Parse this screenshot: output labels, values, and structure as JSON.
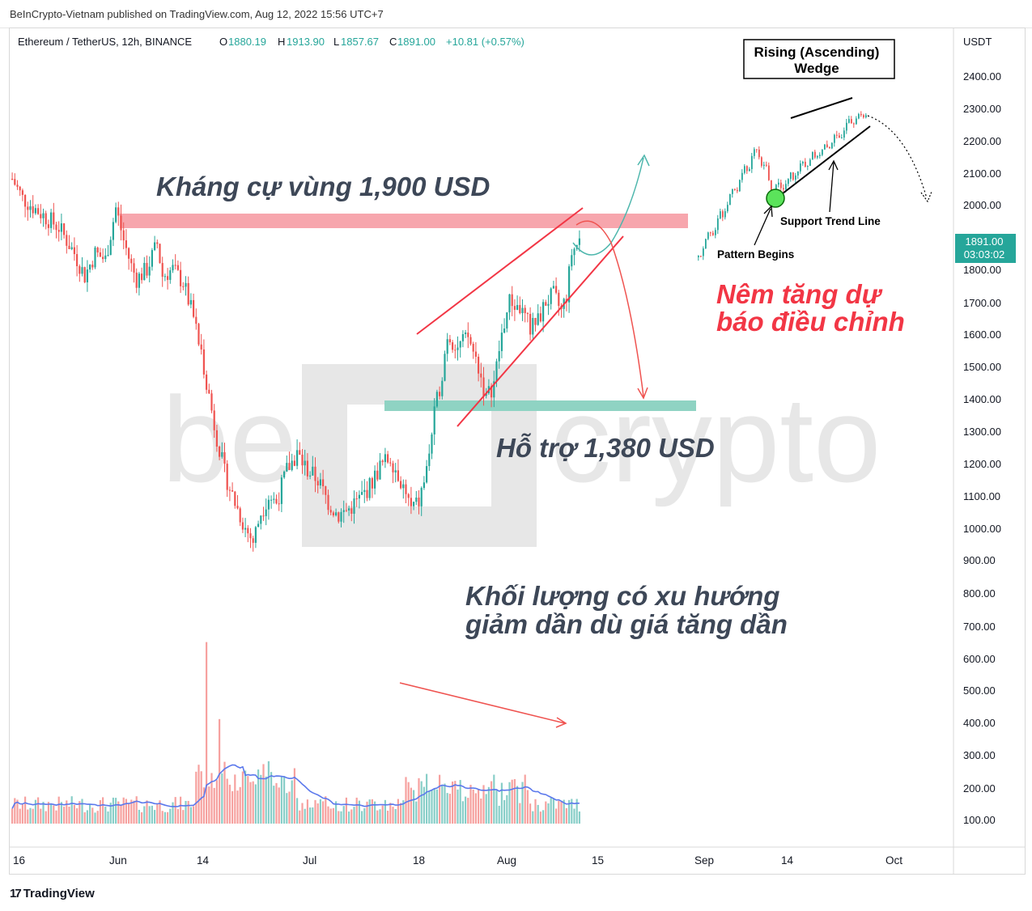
{
  "header": {
    "published": "BeInCrypto-Vietnam published on TradingView.com, Aug 12, 2022 15:56 UTC+7"
  },
  "legend": {
    "symbol": "Ethereum / TetherUS, 12h, BINANCE",
    "o_label": "O",
    "o": "1880.19",
    "h_label": "H",
    "h": "1913.90",
    "l_label": "L",
    "l": "1857.67",
    "c_label": "C",
    "c": "1891.00",
    "change": "+10.81 (+0.57%)"
  },
  "price_tag": {
    "price": "1891.00",
    "countdown": "03:03:02"
  },
  "annotations": {
    "resistance": "Kháng cự vùng 1,900 USD",
    "support": "Hỗ trợ 1,380 USD",
    "forecast_line1": "Nêm tăng dự",
    "forecast_line2": "báo điều chỉnh",
    "volume_line1": "Khối lượng có xu hướng",
    "volume_line2": "giảm dần dù giá tăng dần"
  },
  "inset": {
    "title_line1": "Rising (Ascending)",
    "title_line2": "Wedge",
    "support_label": "Support Trend Line",
    "begin_label": "Pattern Begins"
  },
  "watermark": {
    "left": "be",
    "right": "crypto"
  },
  "footer": {
    "brand": "TradingView",
    "mark": "17"
  },
  "colors": {
    "up": "#26a69a",
    "down": "#ef5350",
    "wedge": "#f23645",
    "resistance_zone": "#f7a6ad",
    "support_zone": "#8fd3c3",
    "ma": "#5b78ec"
  },
  "chart_data": {
    "type": "candlestick",
    "y_unit": "USDT",
    "y_ticks": [
      "2400.00",
      "2300.00",
      "2200.00",
      "2100.00",
      "2000.00",
      "1800.00",
      "1700.00",
      "1600.00",
      "1500.00",
      "1400.00",
      "1300.00",
      "1200.00",
      "1100.00",
      "1000.00",
      "900.00",
      "800.00",
      "700.00",
      "600.00",
      "500.00",
      "400.00",
      "300.00",
      "200.00",
      "100.00"
    ],
    "x_ticks": [
      "16",
      "Jun",
      "14",
      "Jul",
      "18",
      "Aug",
      "15",
      "Sep",
      "14",
      "Oct"
    ],
    "resistance_zone": [
      1900,
      1940
    ],
    "support_zone": [
      1360,
      1400
    ],
    "price_path": [
      {
        "t": 0,
        "p": 2080
      },
      {
        "t": 4,
        "p": 2020
      },
      {
        "t": 10,
        "p": 1980
      },
      {
        "t": 18,
        "p": 1930
      },
      {
        "t": 24,
        "p": 1850
      },
      {
        "t": 28,
        "p": 1780
      },
      {
        "t": 32,
        "p": 1850
      },
      {
        "t": 36,
        "p": 1830
      },
      {
        "t": 40,
        "p": 1990
      },
      {
        "t": 43,
        "p": 1890
      },
      {
        "t": 46,
        "p": 1810
      },
      {
        "t": 48,
        "p": 1770
      },
      {
        "t": 52,
        "p": 1800
      },
      {
        "t": 56,
        "p": 1880
      },
      {
        "t": 58,
        "p": 1780
      },
      {
        "t": 62,
        "p": 1800
      },
      {
        "t": 66,
        "p": 1760
      },
      {
        "t": 70,
        "p": 1650
      },
      {
        "t": 74,
        "p": 1500
      },
      {
        "t": 78,
        "p": 1320
      },
      {
        "t": 82,
        "p": 1170
      },
      {
        "t": 86,
        "p": 1080
      },
      {
        "t": 90,
        "p": 1000
      },
      {
        "t": 93,
        "p": 960
      },
      {
        "t": 96,
        "p": 1050
      },
      {
        "t": 99,
        "p": 1100
      },
      {
        "t": 102,
        "p": 1080
      },
      {
        "t": 106,
        "p": 1180
      },
      {
        "t": 110,
        "p": 1230
      },
      {
        "t": 114,
        "p": 1180
      },
      {
        "t": 118,
        "p": 1150
      },
      {
        "t": 122,
        "p": 1080
      },
      {
        "t": 126,
        "p": 1040
      },
      {
        "t": 130,
        "p": 1060
      },
      {
        "t": 134,
        "p": 1090
      },
      {
        "t": 138,
        "p": 1130
      },
      {
        "t": 142,
        "p": 1190
      },
      {
        "t": 146,
        "p": 1220
      },
      {
        "t": 150,
        "p": 1150
      },
      {
        "t": 154,
        "p": 1060
      },
      {
        "t": 157,
        "p": 1080
      },
      {
        "t": 160,
        "p": 1180
      },
      {
        "t": 163,
        "p": 1350
      },
      {
        "t": 166,
        "p": 1480
      },
      {
        "t": 168,
        "p": 1600
      },
      {
        "t": 172,
        "p": 1560
      },
      {
        "t": 176,
        "p": 1590
      },
      {
        "t": 180,
        "p": 1500
      },
      {
        "t": 183,
        "p": 1400
      },
      {
        "t": 186,
        "p": 1450
      },
      {
        "t": 189,
        "p": 1600
      },
      {
        "t": 192,
        "p": 1700
      },
      {
        "t": 196,
        "p": 1680
      },
      {
        "t": 200,
        "p": 1620
      },
      {
        "t": 203,
        "p": 1640
      },
      {
        "t": 206,
        "p": 1700
      },
      {
        "t": 209,
        "p": 1720
      },
      {
        "t": 212,
        "p": 1670
      },
      {
        "t": 214,
        "p": 1720
      },
      {
        "t": 216,
        "p": 1850
      },
      {
        "t": 219,
        "p": 1890
      }
    ],
    "volume_peak": 660
  }
}
